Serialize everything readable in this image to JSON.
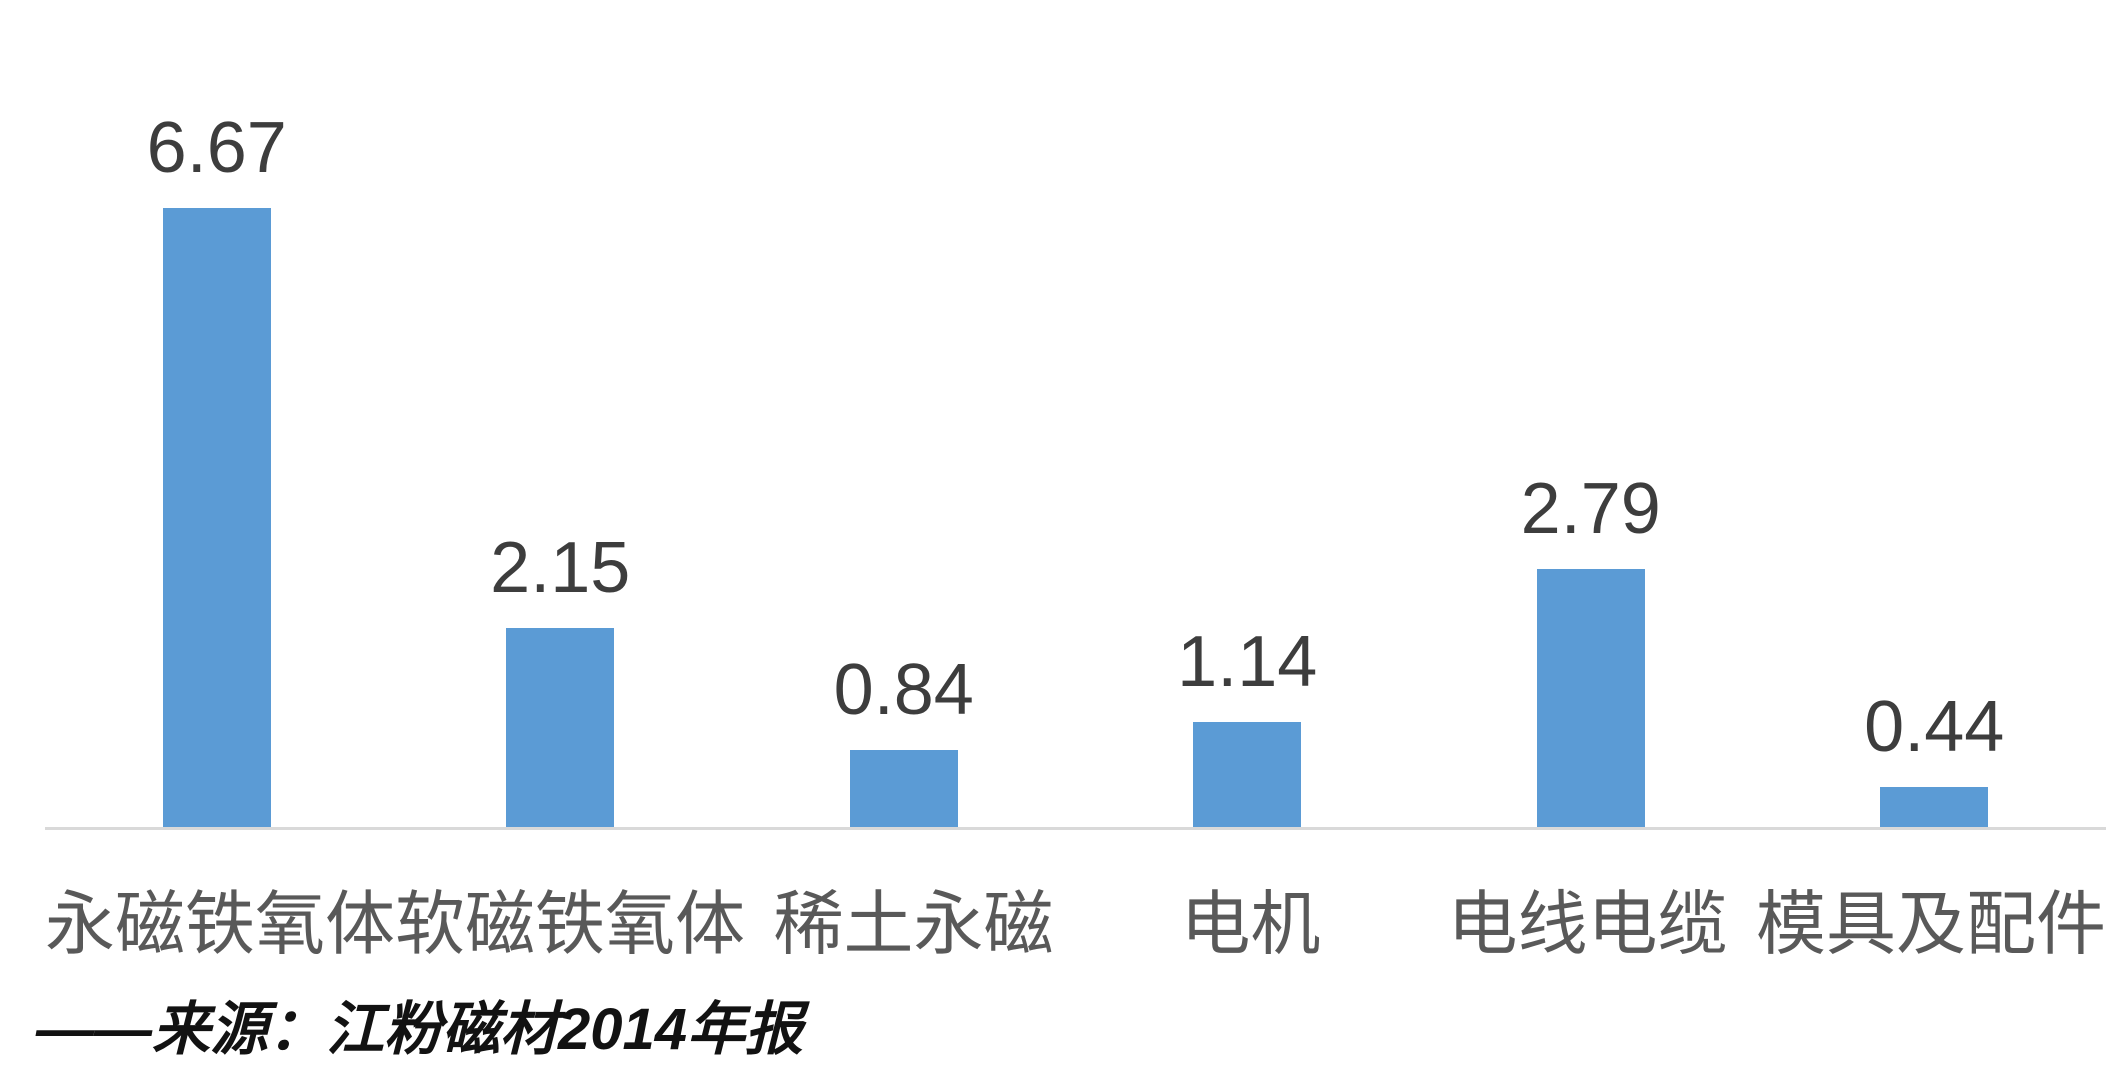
{
  "chart_data": {
    "type": "bar",
    "categories": [
      "永磁铁氧体",
      "软磁铁氧体",
      "稀土永磁",
      "电机",
      "电线电缆",
      "模具及配件"
    ],
    "values": [
      6.67,
      2.15,
      0.84,
      1.14,
      2.79,
      0.44
    ],
    "data_labels": [
      "6.67",
      "2.15",
      "0.84",
      "1.14",
      "2.79",
      "0.44"
    ],
    "title": "",
    "xlabel": "",
    "ylabel": "",
    "ylim": [
      0,
      7
    ],
    "grid": false,
    "legend": "none",
    "bar_color": "#5B9BD5",
    "axis_line_color": "#d9d9d9",
    "value_label_color": "#3d3d3d",
    "category_label_color": "#595959"
  },
  "source_note": {
    "text": "——来源：江粉磁材2014年报",
    "color": "#121212"
  }
}
